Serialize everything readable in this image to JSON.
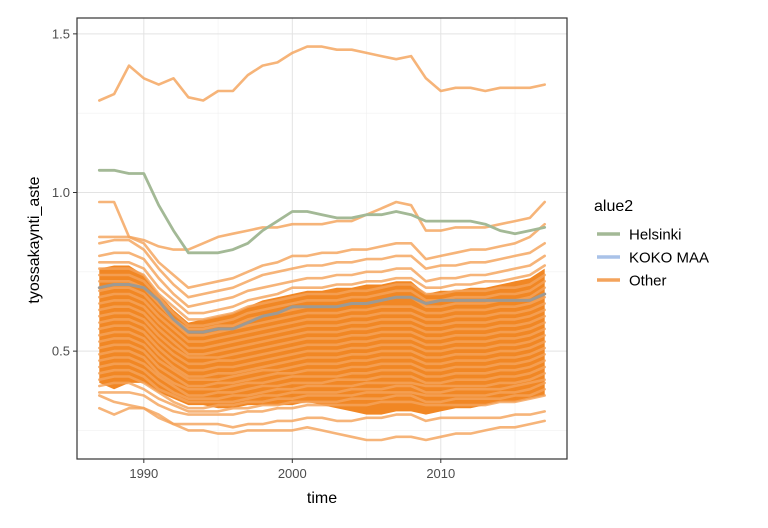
{
  "chart_data": {
    "type": "line",
    "xlabel": "time",
    "ylabel": "tyossakaynti_aste",
    "xlim": [
      1985.5,
      2018.5
    ],
    "ylim": [
      0.16,
      1.55
    ],
    "x_ticks": [
      1990,
      2000,
      2010
    ],
    "x_tick_labels": [
      "1990",
      "2000",
      "2010"
    ],
    "y_ticks": [
      0.5,
      1.0,
      1.5
    ],
    "y_tick_labels": [
      "0.5",
      "1.0",
      "1.5"
    ],
    "grid": true,
    "legend": {
      "title": "alue2",
      "placement": "right",
      "entries": [
        {
          "label": "Helsinki",
          "color": "#a3b996"
        },
        {
          "label": "KOKO MAA",
          "color": "#a9c2e8"
        },
        {
          "label": "Other",
          "color": "#f4a35c"
        }
      ]
    },
    "x": [
      1987,
      1988,
      1989,
      1990,
      1991,
      1992,
      1993,
      1994,
      1995,
      1996,
      1997,
      1998,
      1999,
      2000,
      2001,
      2002,
      2003,
      2004,
      2005,
      2006,
      2007,
      2008,
      2009,
      2010,
      2011,
      2012,
      2013,
      2014,
      2015,
      2016,
      2017
    ],
    "series": [
      {
        "name": "Other",
        "color": "#f4a35c",
        "values": [
          1.29,
          1.31,
          1.4,
          1.36,
          1.34,
          1.36,
          1.3,
          1.29,
          1.32,
          1.32,
          1.37,
          1.4,
          1.41,
          1.44,
          1.46,
          1.46,
          1.45,
          1.45,
          1.44,
          1.43,
          1.42,
          1.43,
          1.36,
          1.32,
          1.33,
          1.33,
          1.32,
          1.33,
          1.33,
          1.33,
          1.34
        ]
      },
      {
        "name": "Helsinki",
        "color": "#a3b996",
        "values": [
          1.07,
          1.07,
          1.06,
          1.06,
          0.96,
          0.88,
          0.81,
          0.81,
          0.81,
          0.82,
          0.84,
          0.88,
          0.91,
          0.94,
          0.94,
          0.93,
          0.92,
          0.92,
          0.93,
          0.93,
          0.94,
          0.93,
          0.91,
          0.91,
          0.91,
          0.91,
          0.9,
          0.88,
          0.87,
          0.88,
          0.89
        ]
      },
      {
        "name": "KOKO MAA",
        "color": "#a9c2e8",
        "values": [
          0.7,
          0.71,
          0.71,
          0.7,
          0.66,
          0.6,
          0.56,
          0.56,
          0.57,
          0.57,
          0.59,
          0.61,
          0.62,
          0.64,
          0.64,
          0.64,
          0.64,
          0.65,
          0.65,
          0.66,
          0.67,
          0.67,
          0.65,
          0.66,
          0.66,
          0.66,
          0.66,
          0.66,
          0.66,
          0.66,
          0.68
        ]
      },
      {
        "name": "Other",
        "color": "#f4a35c",
        "values": [
          0.97,
          0.97,
          0.86,
          0.85,
          0.83,
          0.82,
          0.82,
          0.84,
          0.86,
          0.87,
          0.88,
          0.89,
          0.89,
          0.9,
          0.9,
          0.9,
          0.91,
          0.91,
          0.93,
          0.95,
          0.97,
          0.96,
          0.88,
          0.88,
          0.89,
          0.89,
          0.89,
          0.9,
          0.91,
          0.92,
          0.97
        ]
      },
      {
        "name": "Other",
        "color": "#f4a35c",
        "values": [
          0.86,
          0.86,
          0.86,
          0.84,
          0.78,
          0.74,
          0.7,
          0.71,
          0.72,
          0.73,
          0.75,
          0.77,
          0.78,
          0.8,
          0.8,
          0.81,
          0.81,
          0.82,
          0.82,
          0.83,
          0.84,
          0.84,
          0.79,
          0.8,
          0.81,
          0.82,
          0.82,
          0.83,
          0.84,
          0.86,
          0.9
        ]
      },
      {
        "name": "Other",
        "color": "#f4a35c",
        "values": [
          0.84,
          0.85,
          0.85,
          0.82,
          0.76,
          0.71,
          0.67,
          0.68,
          0.69,
          0.7,
          0.72,
          0.74,
          0.75,
          0.76,
          0.77,
          0.77,
          0.78,
          0.78,
          0.79,
          0.79,
          0.8,
          0.8,
          0.76,
          0.77,
          0.77,
          0.78,
          0.78,
          0.79,
          0.8,
          0.81,
          0.84
        ]
      },
      {
        "name": "Other",
        "color": "#f4a35c",
        "values": [
          0.8,
          0.81,
          0.81,
          0.79,
          0.73,
          0.68,
          0.64,
          0.65,
          0.66,
          0.67,
          0.69,
          0.7,
          0.71,
          0.72,
          0.73,
          0.73,
          0.74,
          0.74,
          0.75,
          0.75,
          0.76,
          0.76,
          0.72,
          0.73,
          0.73,
          0.74,
          0.74,
          0.75,
          0.76,
          0.77,
          0.8
        ]
      },
      {
        "name": "Other",
        "color": "#f4a35c",
        "values": [
          0.78,
          0.78,
          0.78,
          0.76,
          0.7,
          0.66,
          0.62,
          0.62,
          0.63,
          0.64,
          0.66,
          0.67,
          0.68,
          0.7,
          0.7,
          0.7,
          0.71,
          0.71,
          0.72,
          0.72,
          0.73,
          0.73,
          0.7,
          0.7,
          0.71,
          0.71,
          0.72,
          0.72,
          0.73,
          0.74,
          0.77
        ]
      },
      {
        "name": "Other",
        "color": "#f4a35c",
        "values": [
          0.76,
          0.76,
          0.76,
          0.74,
          0.68,
          0.64,
          0.6,
          0.6,
          0.61,
          0.62,
          0.64,
          0.65,
          0.66,
          0.67,
          0.68,
          0.68,
          0.68,
          0.69,
          0.69,
          0.7,
          0.71,
          0.71,
          0.68,
          0.68,
          0.69,
          0.69,
          0.69,
          0.7,
          0.7,
          0.71,
          0.74
        ]
      },
      {
        "name": "Other",
        "color": "#f4a35c",
        "values": [
          0.74,
          0.74,
          0.74,
          0.72,
          0.67,
          0.62,
          0.58,
          0.58,
          0.59,
          0.6,
          0.62,
          0.63,
          0.64,
          0.65,
          0.66,
          0.66,
          0.66,
          0.67,
          0.67,
          0.68,
          0.69,
          0.69,
          0.66,
          0.66,
          0.67,
          0.67,
          0.67,
          0.68,
          0.68,
          0.69,
          0.72
        ]
      },
      {
        "name": "Other",
        "color": "#f4a35c",
        "values": [
          0.72,
          0.72,
          0.72,
          0.7,
          0.65,
          0.6,
          0.57,
          0.57,
          0.58,
          0.58,
          0.6,
          0.61,
          0.62,
          0.63,
          0.64,
          0.64,
          0.64,
          0.65,
          0.65,
          0.66,
          0.67,
          0.67,
          0.64,
          0.64,
          0.65,
          0.65,
          0.65,
          0.66,
          0.66,
          0.67,
          0.7
        ]
      },
      {
        "name": "Other",
        "color": "#f4a35c",
        "values": [
          0.69,
          0.7,
          0.7,
          0.68,
          0.63,
          0.59,
          0.55,
          0.55,
          0.56,
          0.57,
          0.58,
          0.59,
          0.6,
          0.61,
          0.62,
          0.62,
          0.62,
          0.63,
          0.63,
          0.64,
          0.64,
          0.64,
          0.62,
          0.62,
          0.63,
          0.63,
          0.63,
          0.64,
          0.64,
          0.65,
          0.67
        ]
      },
      {
        "name": "Other",
        "color": "#f4a35c",
        "values": [
          0.67,
          0.68,
          0.68,
          0.66,
          0.61,
          0.57,
          0.53,
          0.53,
          0.54,
          0.55,
          0.56,
          0.57,
          0.58,
          0.59,
          0.6,
          0.6,
          0.6,
          0.61,
          0.61,
          0.62,
          0.62,
          0.62,
          0.6,
          0.6,
          0.61,
          0.61,
          0.61,
          0.62,
          0.62,
          0.63,
          0.65
        ]
      },
      {
        "name": "Other",
        "color": "#f4a35c",
        "values": [
          0.65,
          0.66,
          0.66,
          0.64,
          0.59,
          0.55,
          0.51,
          0.51,
          0.52,
          0.53,
          0.54,
          0.55,
          0.56,
          0.57,
          0.58,
          0.58,
          0.58,
          0.59,
          0.59,
          0.6,
          0.6,
          0.6,
          0.58,
          0.58,
          0.59,
          0.59,
          0.59,
          0.6,
          0.6,
          0.61,
          0.63
        ]
      },
      {
        "name": "Other",
        "color": "#f4a35c",
        "values": [
          0.63,
          0.64,
          0.64,
          0.62,
          0.57,
          0.53,
          0.49,
          0.49,
          0.5,
          0.51,
          0.52,
          0.53,
          0.54,
          0.55,
          0.56,
          0.56,
          0.56,
          0.57,
          0.57,
          0.58,
          0.58,
          0.58,
          0.56,
          0.56,
          0.57,
          0.57,
          0.57,
          0.58,
          0.58,
          0.59,
          0.61
        ]
      },
      {
        "name": "Other",
        "color": "#f4a35c",
        "values": [
          0.61,
          0.62,
          0.62,
          0.6,
          0.55,
          0.51,
          0.48,
          0.48,
          0.48,
          0.49,
          0.5,
          0.51,
          0.52,
          0.53,
          0.54,
          0.54,
          0.54,
          0.55,
          0.55,
          0.56,
          0.56,
          0.56,
          0.54,
          0.54,
          0.55,
          0.55,
          0.55,
          0.56,
          0.56,
          0.57,
          0.59
        ]
      },
      {
        "name": "Other",
        "color": "#f4a35c",
        "values": [
          0.59,
          0.6,
          0.6,
          0.58,
          0.53,
          0.49,
          0.46,
          0.46,
          0.47,
          0.47,
          0.48,
          0.49,
          0.5,
          0.51,
          0.52,
          0.52,
          0.52,
          0.53,
          0.53,
          0.54,
          0.54,
          0.54,
          0.52,
          0.52,
          0.53,
          0.53,
          0.53,
          0.54,
          0.54,
          0.55,
          0.57
        ]
      },
      {
        "name": "Other",
        "color": "#f4a35c",
        "values": [
          0.57,
          0.58,
          0.58,
          0.56,
          0.51,
          0.47,
          0.44,
          0.44,
          0.45,
          0.45,
          0.46,
          0.47,
          0.48,
          0.49,
          0.5,
          0.5,
          0.5,
          0.51,
          0.51,
          0.52,
          0.52,
          0.52,
          0.5,
          0.5,
          0.51,
          0.51,
          0.51,
          0.52,
          0.52,
          0.53,
          0.55
        ]
      },
      {
        "name": "Other",
        "color": "#f4a35c",
        "values": [
          0.55,
          0.56,
          0.56,
          0.54,
          0.49,
          0.45,
          0.42,
          0.42,
          0.43,
          0.43,
          0.44,
          0.45,
          0.46,
          0.47,
          0.48,
          0.48,
          0.48,
          0.49,
          0.49,
          0.5,
          0.5,
          0.5,
          0.48,
          0.48,
          0.49,
          0.49,
          0.49,
          0.5,
          0.5,
          0.51,
          0.53
        ]
      },
      {
        "name": "Other",
        "color": "#f4a35c",
        "values": [
          0.53,
          0.54,
          0.54,
          0.52,
          0.47,
          0.44,
          0.41,
          0.41,
          0.41,
          0.42,
          0.43,
          0.44,
          0.44,
          0.45,
          0.46,
          0.46,
          0.46,
          0.47,
          0.47,
          0.48,
          0.48,
          0.48,
          0.46,
          0.46,
          0.47,
          0.47,
          0.47,
          0.48,
          0.48,
          0.49,
          0.51
        ]
      },
      {
        "name": "Other",
        "color": "#f4a35c",
        "values": [
          0.51,
          0.52,
          0.52,
          0.5,
          0.45,
          0.42,
          0.39,
          0.39,
          0.4,
          0.4,
          0.41,
          0.42,
          0.43,
          0.43,
          0.44,
          0.44,
          0.44,
          0.45,
          0.45,
          0.46,
          0.46,
          0.46,
          0.44,
          0.44,
          0.45,
          0.45,
          0.45,
          0.46,
          0.46,
          0.47,
          0.49
        ]
      },
      {
        "name": "Other",
        "color": "#f4a35c",
        "values": [
          0.49,
          0.5,
          0.5,
          0.48,
          0.43,
          0.4,
          0.38,
          0.38,
          0.38,
          0.39,
          0.4,
          0.4,
          0.41,
          0.42,
          0.42,
          0.42,
          0.42,
          0.43,
          0.43,
          0.44,
          0.44,
          0.44,
          0.42,
          0.42,
          0.43,
          0.43,
          0.43,
          0.44,
          0.44,
          0.45,
          0.47
        ]
      },
      {
        "name": "Other",
        "color": "#f4a35c",
        "values": [
          0.47,
          0.48,
          0.48,
          0.46,
          0.42,
          0.39,
          0.36,
          0.36,
          0.37,
          0.37,
          0.38,
          0.39,
          0.39,
          0.4,
          0.4,
          0.4,
          0.41,
          0.41,
          0.41,
          0.42,
          0.42,
          0.42,
          0.4,
          0.4,
          0.41,
          0.41,
          0.41,
          0.42,
          0.42,
          0.43,
          0.45
        ]
      },
      {
        "name": "Other",
        "color": "#f4a35c",
        "values": [
          0.45,
          0.46,
          0.46,
          0.44,
          0.4,
          0.37,
          0.35,
          0.35,
          0.35,
          0.36,
          0.36,
          0.37,
          0.38,
          0.38,
          0.39,
          0.39,
          0.39,
          0.39,
          0.4,
          0.4,
          0.4,
          0.4,
          0.39,
          0.39,
          0.39,
          0.39,
          0.39,
          0.4,
          0.4,
          0.41,
          0.43
        ]
      },
      {
        "name": "Other",
        "color": "#f4a35c",
        "values": [
          0.43,
          0.44,
          0.44,
          0.42,
          0.38,
          0.36,
          0.34,
          0.34,
          0.34,
          0.34,
          0.35,
          0.36,
          0.36,
          0.37,
          0.37,
          0.37,
          0.37,
          0.38,
          0.38,
          0.38,
          0.39,
          0.39,
          0.37,
          0.37,
          0.38,
          0.38,
          0.38,
          0.38,
          0.39,
          0.4,
          0.41
        ]
      },
      {
        "name": "Other",
        "color": "#f4a35c",
        "values": [
          0.41,
          0.42,
          0.42,
          0.4,
          0.37,
          0.34,
          0.32,
          0.32,
          0.33,
          0.33,
          0.34,
          0.34,
          0.35,
          0.35,
          0.36,
          0.36,
          0.36,
          0.36,
          0.37,
          0.37,
          0.37,
          0.37,
          0.36,
          0.36,
          0.36,
          0.36,
          0.36,
          0.37,
          0.37,
          0.38,
          0.4
        ]
      },
      {
        "name": "Other",
        "color": "#f4a35c",
        "values": [
          0.39,
          0.4,
          0.4,
          0.38,
          0.35,
          0.33,
          0.31,
          0.31,
          0.31,
          0.32,
          0.32,
          0.33,
          0.33,
          0.34,
          0.34,
          0.34,
          0.34,
          0.35,
          0.35,
          0.35,
          0.36,
          0.36,
          0.34,
          0.34,
          0.35,
          0.35,
          0.35,
          0.35,
          0.36,
          0.36,
          0.38
        ]
      },
      {
        "name": "Other",
        "color": "#f4a35c",
        "values": [
          0.37,
          0.37,
          0.37,
          0.36,
          0.33,
          0.31,
          0.3,
          0.3,
          0.3,
          0.3,
          0.31,
          0.31,
          0.32,
          0.32,
          0.33,
          0.33,
          0.33,
          0.33,
          0.33,
          0.34,
          0.34,
          0.34,
          0.33,
          0.33,
          0.33,
          0.33,
          0.33,
          0.34,
          0.34,
          0.35,
          0.36
        ]
      },
      {
        "name": "Other",
        "color": "#f4a35c",
        "values": [
          0.32,
          0.3,
          0.32,
          0.32,
          0.3,
          0.27,
          0.27,
          0.27,
          0.27,
          0.26,
          0.27,
          0.27,
          0.28,
          0.28,
          0.29,
          0.29,
          0.28,
          0.28,
          0.29,
          0.29,
          0.3,
          0.3,
          0.28,
          0.29,
          0.29,
          0.29,
          0.29,
          0.29,
          0.3,
          0.3,
          0.31
        ]
      },
      {
        "name": "Other",
        "color": "#f4a35c",
        "values": [
          0.36,
          0.34,
          0.33,
          0.32,
          0.29,
          0.27,
          0.25,
          0.25,
          0.24,
          0.24,
          0.25,
          0.25,
          0.25,
          0.25,
          0.26,
          0.25,
          0.24,
          0.23,
          0.22,
          0.22,
          0.23,
          0.23,
          0.22,
          0.23,
          0.24,
          0.24,
          0.25,
          0.26,
          0.26,
          0.27,
          0.28
        ]
      }
    ]
  }
}
